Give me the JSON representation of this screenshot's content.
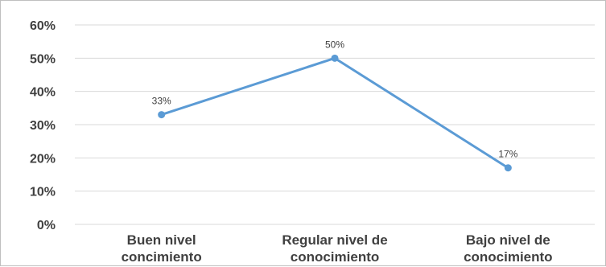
{
  "chart_data": {
    "type": "line",
    "categories": [
      [
        "Buen nivel",
        "concimiento"
      ],
      [
        "Regular nivel de",
        "conocimiento"
      ],
      [
        "Bajo nivel de",
        "conocimiento"
      ]
    ],
    "series": [
      {
        "values": [
          33,
          50,
          17
        ],
        "data_labels": [
          "33%",
          "50%",
          "17%"
        ],
        "color": "#5b9bd5"
      }
    ],
    "y_ticks": [
      "0%",
      "10%",
      "20%",
      "30%",
      "40%",
      "50%",
      "60%"
    ],
    "ylim": [
      0,
      60
    ],
    "grid": true,
    "legend": "none"
  }
}
